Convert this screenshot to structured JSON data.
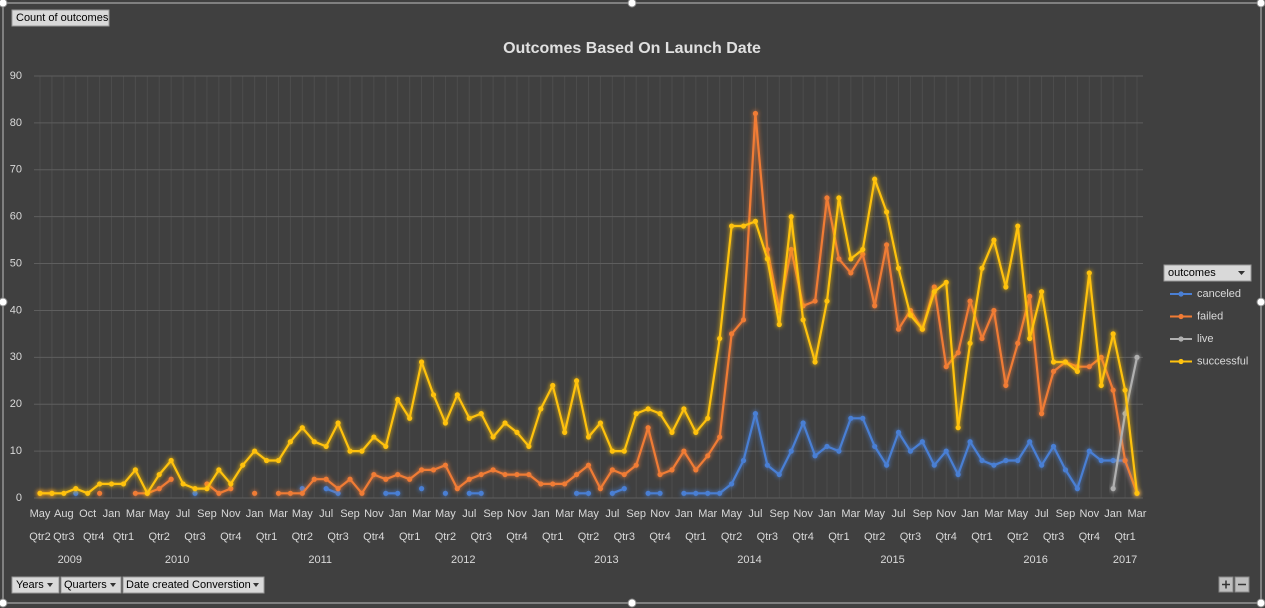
{
  "chart_data": {
    "type": "line",
    "title": "Outcomes Based On Launch Date",
    "categories": [
      "May",
      null,
      "Aug",
      null,
      "Oct",
      null,
      "Jan",
      null,
      "Mar",
      null,
      "May",
      null,
      "Jul",
      null,
      "Sep",
      null,
      "Nov",
      null,
      "Jan",
      null,
      "Mar",
      null,
      "May",
      null,
      "Jul",
      null,
      "Sep",
      null,
      "Nov",
      null,
      "Jan",
      null,
      "Mar",
      null,
      "May",
      null,
      "Jul",
      null,
      "Sep",
      null,
      "Nov",
      null,
      "Jan",
      null,
      "Mar",
      null,
      "May",
      null,
      "Jul",
      null,
      "Sep",
      null,
      "Nov",
      null,
      "Jan",
      null,
      "Mar",
      null,
      "May",
      null,
      "Jul",
      null,
      "Sep",
      null,
      "Nov",
      null,
      "Jan",
      null,
      "Mar",
      null,
      "May",
      null,
      "Jul",
      null,
      "Sep",
      null,
      "Nov",
      null,
      "Jan",
      null,
      "Mar",
      null,
      "May",
      null,
      "Jul",
      null,
      "Sep",
      null,
      "Nov",
      null,
      "Jan",
      null,
      "Mar"
    ],
    "quarter_labels": [
      "Qtr2",
      "Qtr3",
      null,
      null,
      "Qtr4",
      null,
      "Qtr1",
      null,
      null,
      "Qtr2",
      null,
      null,
      "Qtr3",
      null,
      null,
      "Qtr4",
      null,
      null,
      "Qtr1",
      null,
      null,
      "Qtr2",
      null,
      null,
      "Qtr3",
      null,
      null,
      "Qtr4",
      null,
      null,
      "Qtr1",
      null,
      null,
      "Qtr2",
      null,
      null,
      "Qtr3",
      null,
      null,
      "Qtr4",
      null,
      null,
      "Qtr1",
      null,
      null,
      "Qtr2",
      null,
      null,
      "Qtr3",
      null,
      null,
      "Qtr4",
      null,
      null,
      "Qtr1",
      null,
      null,
      "Qtr2",
      null,
      null,
      "Qtr3",
      null,
      null,
      "Qtr4",
      null,
      null,
      "Qtr1",
      null,
      null,
      "Qtr2",
      null,
      null,
      "Qtr3",
      null,
      null,
      "Qtr4",
      null,
      null,
      "Qtr1",
      null,
      null,
      "Qtr2",
      null,
      null,
      "Qtr3",
      null,
      null,
      "Qtr4",
      null,
      null,
      "Qtr1",
      null,
      null
    ],
    "year_labels": [
      "2009",
      null,
      null,
      null,
      null,
      null,
      "2010",
      null,
      null,
      null,
      null,
      null,
      null,
      null,
      null,
      null,
      null,
      null,
      "2011",
      null,
      null,
      null,
      null,
      null,
      null,
      null,
      null,
      null,
      null,
      null,
      "2012",
      null,
      null,
      null,
      null,
      null,
      null,
      null,
      null,
      null,
      null,
      null,
      "2013",
      null,
      null,
      null,
      null,
      null,
      null,
      null,
      null,
      null,
      null,
      null,
      "2014",
      null,
      null,
      null,
      null,
      null,
      null,
      null,
      null,
      null,
      null,
      null,
      "2015",
      null,
      null,
      null,
      null,
      null,
      null,
      null,
      null,
      null,
      null,
      null,
      "2016",
      null,
      null,
      null,
      null,
      null,
      null,
      null,
      null,
      null,
      null,
      null,
      "2017",
      null,
      null
    ],
    "series": [
      {
        "name": "canceled",
        "color": "#4a7fd4",
        "values": [
          null,
          null,
          null,
          1,
          null,
          null,
          null,
          null,
          null,
          null,
          null,
          null,
          null,
          1,
          null,
          null,
          null,
          null,
          null,
          null,
          null,
          null,
          2,
          null,
          2,
          1,
          null,
          null,
          null,
          1,
          1,
          null,
          2,
          null,
          1,
          null,
          1,
          1,
          null,
          null,
          null,
          null,
          null,
          null,
          null,
          1,
          1,
          null,
          1,
          2,
          null,
          1,
          1,
          null,
          1,
          1,
          1,
          1,
          3,
          8,
          18,
          7,
          5,
          10,
          16,
          9,
          11,
          10,
          17,
          17,
          11,
          7,
          14,
          10,
          12,
          7,
          10,
          5,
          12,
          8,
          7,
          8,
          8,
          12,
          7,
          11,
          6,
          2,
          10,
          8,
          8,
          8,
          1
        ]
      },
      {
        "name": "failed",
        "color": "#f07b35",
        "values": [
          1,
          1,
          null,
          null,
          null,
          1,
          null,
          null,
          1,
          1,
          2,
          4,
          null,
          null,
          3,
          1,
          2,
          null,
          1,
          null,
          1,
          1,
          1,
          4,
          4,
          2,
          4,
          1,
          5,
          4,
          5,
          4,
          6,
          6,
          7,
          2,
          4,
          5,
          6,
          5,
          5,
          5,
          3,
          3,
          3,
          5,
          7,
          2,
          6,
          5,
          7,
          15,
          5,
          6,
          10,
          6,
          9,
          13,
          35,
          38,
          82,
          53,
          40,
          53,
          41,
          42,
          64,
          51,
          48,
          52,
          41,
          54,
          36,
          40,
          36,
          45,
          28,
          31,
          42,
          34,
          40,
          24,
          33,
          43,
          18,
          27,
          29,
          28,
          28,
          30,
          23,
          8,
          1
        ]
      },
      {
        "name": "live",
        "color": "#b0b0b0",
        "values": [
          null,
          null,
          null,
          null,
          null,
          null,
          null,
          null,
          null,
          null,
          null,
          null,
          null,
          null,
          null,
          null,
          null,
          null,
          null,
          null,
          null,
          null,
          null,
          null,
          null,
          null,
          null,
          null,
          null,
          null,
          null,
          null,
          null,
          null,
          null,
          null,
          null,
          null,
          null,
          null,
          null,
          null,
          null,
          null,
          null,
          null,
          null,
          null,
          null,
          null,
          null,
          null,
          null,
          null,
          null,
          null,
          null,
          null,
          null,
          null,
          null,
          null,
          null,
          null,
          null,
          null,
          null,
          null,
          null,
          null,
          null,
          null,
          null,
          null,
          null,
          null,
          null,
          null,
          null,
          null,
          null,
          null,
          null,
          null,
          null,
          null,
          null,
          null,
          null,
          null,
          2,
          18,
          30
        ]
      },
      {
        "name": "successful",
        "color": "#ffc20e",
        "values": [
          1,
          1,
          1,
          2,
          1,
          3,
          3,
          3,
          6,
          1,
          5,
          8,
          3,
          2,
          2,
          6,
          3,
          7,
          10,
          8,
          8,
          12,
          15,
          12,
          11,
          16,
          10,
          10,
          13,
          11,
          21,
          17,
          29,
          22,
          16,
          22,
          17,
          18,
          13,
          16,
          14,
          11,
          19,
          24,
          14,
          25,
          13,
          16,
          10,
          10,
          18,
          19,
          18,
          14,
          19,
          14,
          17,
          34,
          58,
          58,
          59,
          51,
          37,
          60,
          38,
          29,
          42,
          64,
          51,
          53,
          68,
          61,
          49,
          39,
          36,
          44,
          46,
          15,
          33,
          49,
          55,
          45,
          58,
          34,
          44,
          29,
          29,
          27,
          48,
          24,
          35,
          23,
          1
        ]
      }
    ],
    "ylim": [
      0,
      90
    ],
    "yticks": [
      0,
      10,
      20,
      30,
      40,
      50,
      60,
      70,
      80,
      90
    ],
    "grid": true,
    "legend_title": "outcomes",
    "legend_position": "right"
  },
  "field_buttons": {
    "values_field": "Count of outcomes",
    "axis_fields": [
      "Years",
      "Quarters",
      "Date created Converstion"
    ]
  }
}
